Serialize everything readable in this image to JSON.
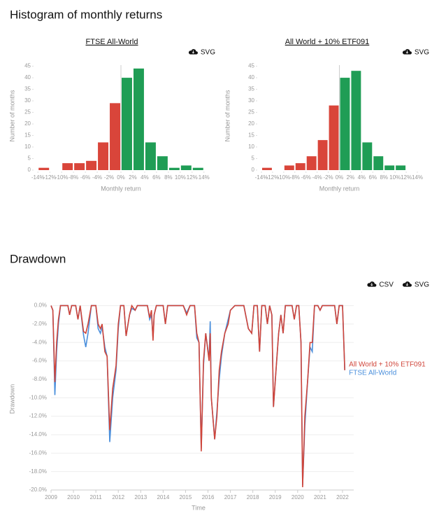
{
  "sections": [
    "Histogram of monthly returns",
    "Drawdown"
  ],
  "chart_data": [
    {
      "type": "histogram",
      "title": "FTSE All-World",
      "buttons": [
        "SVG"
      ],
      "bins": [
        -14,
        -12,
        -10,
        -8,
        -6,
        -4,
        -2,
        0,
        2,
        4,
        6,
        8,
        10,
        12,
        14
      ],
      "values": [
        1,
        0,
        3,
        3,
        4,
        12,
        29,
        40,
        44,
        12,
        6,
        1,
        2,
        1
      ],
      "negative_color": "#d9453a",
      "positive_color": "#1f9d55",
      "xlim": [
        -14.5,
        14.5
      ],
      "xticks": [
        {
          "value": -14,
          "label": "-14%"
        },
        {
          "value": -12,
          "label": "-12%"
        },
        {
          "value": -10,
          "label": "-10%"
        },
        {
          "value": -8,
          "label": "-8%"
        },
        {
          "value": -6,
          "label": "-6%"
        },
        {
          "value": -4,
          "label": "-4%"
        },
        {
          "value": -2,
          "label": "-2%"
        },
        {
          "value": 0,
          "label": "0%"
        },
        {
          "value": 2,
          "label": "2%"
        },
        {
          "value": 4,
          "label": "4%"
        },
        {
          "value": 6,
          "label": "6%"
        },
        {
          "value": 8,
          "label": "8%"
        },
        {
          "value": 10,
          "label": "10%"
        },
        {
          "value": 12,
          "label": "12%"
        },
        {
          "value": 14,
          "label": "14%"
        }
      ],
      "ylim": [
        0,
        47
      ],
      "yticks": [
        0,
        5,
        10,
        15,
        20,
        25,
        30,
        35,
        40,
        45
      ],
      "xlabel": "Monthly return",
      "ylabel": "Number of months"
    },
    {
      "type": "histogram",
      "title": "All World + 10% ETF091",
      "buttons": [
        "SVG"
      ],
      "bins": [
        -14,
        -12,
        -10,
        -8,
        -6,
        -4,
        -2,
        0,
        2,
        4,
        6,
        8,
        10,
        12,
        14
      ],
      "values": [
        1,
        0,
        2,
        3,
        6,
        13,
        28,
        40,
        43,
        12,
        6,
        2,
        2,
        0
      ],
      "negative_color": "#d9453a",
      "positive_color": "#1f9d55",
      "xlim": [
        -14.5,
        14.5
      ],
      "xticks": [
        {
          "value": -14,
          "label": "-14%"
        },
        {
          "value": -12,
          "label": "-12%"
        },
        {
          "value": -10,
          "label": "-10%"
        },
        {
          "value": -8,
          "label": "-8%"
        },
        {
          "value": -6,
          "label": "-6%"
        },
        {
          "value": -4,
          "label": "-4%"
        },
        {
          "value": -2,
          "label": "-2%"
        },
        {
          "value": 0,
          "label": "0%"
        },
        {
          "value": 2,
          "label": "2%"
        },
        {
          "value": 4,
          "label": "4%"
        },
        {
          "value": 6,
          "label": "6%"
        },
        {
          "value": 8,
          "label": "8%"
        },
        {
          "value": 10,
          "label": "10%"
        },
        {
          "value": 12,
          "label": "12%"
        },
        {
          "value": 14,
          "label": "14%"
        }
      ],
      "ylim": [
        0,
        47
      ],
      "yticks": [
        0,
        5,
        10,
        15,
        20,
        25,
        30,
        35,
        40,
        45
      ],
      "xlabel": "Monthly return",
      "ylabel": "Number of months"
    },
    {
      "type": "line",
      "buttons": [
        "CSV",
        "SVG"
      ],
      "legend": "right",
      "grid": true,
      "x": [
        2009.0,
        2009.08,
        2009.17,
        2009.25,
        2009.33,
        2009.42,
        2009.75,
        2009.83,
        2009.92,
        2010.1,
        2010.2,
        2010.3,
        2010.45,
        2010.55,
        2010.65,
        2010.8,
        2011.0,
        2011.1,
        2011.2,
        2011.28,
        2011.4,
        2011.5,
        2011.62,
        2011.75,
        2011.9,
        2012.0,
        2012.1,
        2012.25,
        2012.35,
        2012.5,
        2012.6,
        2012.75,
        2012.85,
        2013.3,
        2013.4,
        2013.48,
        2013.55,
        2013.6,
        2013.7,
        2014.0,
        2014.1,
        2014.2,
        2014.9,
        2015.05,
        2015.2,
        2015.4,
        2015.5,
        2015.6,
        2015.7,
        2015.8,
        2015.9,
        2016.05,
        2016.1,
        2016.15,
        2016.3,
        2016.4,
        2016.5,
        2016.6,
        2016.75,
        2016.9,
        2017.0,
        2017.2,
        2017.6,
        2017.8,
        2017.95,
        2018.05,
        2018.2,
        2018.3,
        2018.4,
        2018.55,
        2018.65,
        2018.75,
        2018.85,
        2018.92,
        2019.05,
        2019.15,
        2019.25,
        2019.35,
        2019.45,
        2019.75,
        2019.85,
        2019.95,
        2020.05,
        2020.15,
        2020.22,
        2020.32,
        2020.45,
        2020.55,
        2020.65,
        2020.75,
        2020.9,
        2021.0,
        2021.1,
        2021.65,
        2021.75,
        2021.85,
        2022.0,
        2022.1
      ],
      "series": [
        {
          "name": "FTSE All-World",
          "color": "#4a8fdc",
          "values": [
            0,
            -0.5,
            -9.7,
            -5,
            -2,
            0,
            0,
            -1,
            0,
            0,
            -1.5,
            0,
            -3.2,
            -4.5,
            -3,
            0,
            0,
            -2.5,
            -3,
            -2.3,
            -4.5,
            -5.5,
            -14.8,
            -10,
            -7,
            -2.5,
            0,
            0,
            -3.3,
            -1,
            -0.3,
            -0.5,
            0,
            0,
            -1.5,
            -1,
            -3.5,
            -1,
            0,
            0,
            -2,
            0,
            0,
            -0.8,
            0,
            0,
            -3.5,
            -4,
            -15.5,
            -6.5,
            -3,
            -5.8,
            -1.7,
            -10,
            -14.5,
            -11.5,
            -8,
            -5.5,
            -3,
            -1.5,
            -0.5,
            0,
            0,
            -2.5,
            -3,
            0,
            0,
            -5,
            0,
            0,
            -2,
            0,
            -1,
            -11,
            -6.5,
            -3,
            -1,
            -3,
            0,
            0,
            -1.5,
            0,
            0,
            -4,
            -19.5,
            -13,
            -8,
            -4.5,
            -5,
            0,
            0,
            -0.5,
            0,
            0,
            -2,
            0,
            0,
            -7
          ]
        },
        {
          "name": "All World + 10% ETF091",
          "color": "#d0453a",
          "values": [
            0,
            -0.5,
            -8.3,
            -4,
            -1.5,
            0,
            0,
            -1,
            0,
            0,
            -1.5,
            0,
            -2.8,
            -3,
            -2,
            0,
            0,
            -2,
            -2.5,
            -2,
            -5,
            -5.5,
            -13.5,
            -9,
            -6.5,
            -2,
            0,
            0,
            -3.3,
            -1,
            0,
            -0.5,
            0,
            0,
            -1.3,
            -0.5,
            -3.8,
            -1,
            0,
            0,
            -2,
            0,
            0,
            -1,
            0,
            0,
            -3,
            -4,
            -15.8,
            -6,
            -3,
            -6,
            -3,
            -10,
            -14.5,
            -12,
            -7,
            -5,
            -3,
            -2,
            -0.5,
            0,
            0,
            -2.5,
            -3,
            0,
            0,
            -5,
            0,
            0,
            -2,
            0,
            -1,
            -11,
            -6.5,
            -3,
            -1,
            -3,
            0,
            0,
            -1.5,
            0,
            0,
            -4,
            -19.7,
            -12,
            -8,
            -4,
            -4,
            0,
            0,
            -0.5,
            0,
            0,
            -2,
            0,
            0,
            -7
          ]
        }
      ],
      "xlim": [
        2009,
        2022.5
      ],
      "xticks": [
        2009,
        2010,
        2011,
        2012,
        2013,
        2014,
        2015,
        2016,
        2017,
        2018,
        2019,
        2020,
        2021,
        2022
      ],
      "ylim": [
        -20,
        0.5
      ],
      "yticks": [
        {
          "value": 0,
          "label": "0.0%"
        },
        {
          "value": -2,
          "label": "-2.0%"
        },
        {
          "value": -4,
          "label": "-4.0%"
        },
        {
          "value": -6,
          "label": "-6.0%"
        },
        {
          "value": -8,
          "label": "-8.0%"
        },
        {
          "value": -10,
          "label": "-10.0%"
        },
        {
          "value": -12,
          "label": "-12.0%"
        },
        {
          "value": -14,
          "label": "-14.0%"
        },
        {
          "value": -16,
          "label": "-16.0%"
        },
        {
          "value": -18,
          "label": "-18.0%"
        },
        {
          "value": -20,
          "label": "-20.0%"
        }
      ],
      "xlabel": "Time",
      "ylabel": "Drawdown"
    }
  ]
}
